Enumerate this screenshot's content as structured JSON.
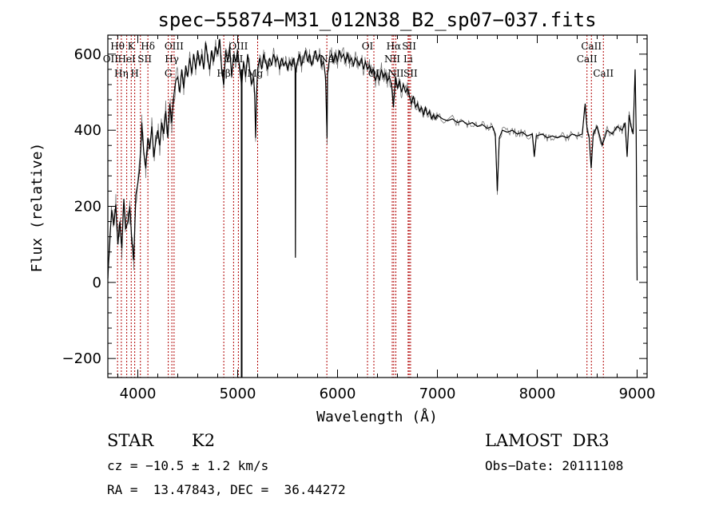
{
  "chart_data": {
    "type": "line",
    "title": "spec−55874−M31_012N38_B2_sp07−037.fits",
    "xlabel": "Wavelength (Å)",
    "ylabel": "Flux (relative)",
    "xlim": [
      3700,
      9100
    ],
    "ylim": [
      -250,
      650
    ],
    "x_ticks": [
      {
        "value": 4000,
        "label": "4000"
      },
      {
        "value": 5000,
        "label": "5000"
      },
      {
        "value": 6000,
        "label": "6000"
      },
      {
        "value": 7000,
        "label": "7000"
      },
      {
        "value": 8000,
        "label": "8000"
      },
      {
        "value": 9000,
        "label": "9000"
      }
    ],
    "y_ticks": [
      {
        "value": -200,
        "label": "−200"
      },
      {
        "value": 0,
        "label": "0"
      },
      {
        "value": 200,
        "label": "200"
      },
      {
        "value": 400,
        "label": "400"
      },
      {
        "value": 600,
        "label": "600"
      }
    ],
    "series": [
      {
        "points": [
          [
            3700,
            10
          ],
          [
            3720,
            120
          ],
          [
            3740,
            190
          ],
          [
            3760,
            150
          ],
          [
            3780,
            205
          ],
          [
            3800,
            100
          ],
          [
            3820,
            160
          ],
          [
            3840,
            90
          ],
          [
            3860,
            220
          ],
          [
            3880,
            140
          ],
          [
            3900,
            160
          ],
          [
            3920,
            200
          ],
          [
            3940,
            110
          ],
          [
            3960,
            60
          ],
          [
            3980,
            230
          ],
          [
            4000,
            260
          ],
          [
            4020,
            300
          ],
          [
            4040,
            420
          ],
          [
            4060,
            340
          ],
          [
            4080,
            300
          ],
          [
            4100,
            380
          ],
          [
            4120,
            350
          ],
          [
            4140,
            410
          ],
          [
            4160,
            330
          ],
          [
            4180,
            370
          ],
          [
            4200,
            400
          ],
          [
            4220,
            360
          ],
          [
            4240,
            420
          ],
          [
            4260,
            390
          ],
          [
            4280,
            450
          ],
          [
            4300,
            380
          ],
          [
            4320,
            470
          ],
          [
            4340,
            420
          ],
          [
            4360,
            490
          ],
          [
            4380,
            530
          ],
          [
            4400,
            540
          ],
          [
            4420,
            500
          ],
          [
            4440,
            560
          ],
          [
            4460,
            510
          ],
          [
            4480,
            570
          ],
          [
            4500,
            540
          ],
          [
            4520,
            590
          ],
          [
            4540,
            550
          ],
          [
            4560,
            600
          ],
          [
            4580,
            560
          ],
          [
            4600,
            610
          ],
          [
            4620,
            570
          ],
          [
            4640,
            600
          ],
          [
            4660,
            560
          ],
          [
            4680,
            630
          ],
          [
            4700,
            590
          ],
          [
            4720,
            560
          ],
          [
            4740,
            610
          ],
          [
            4760,
            580
          ],
          [
            4780,
            620
          ],
          [
            4800,
            600
          ],
          [
            4820,
            640
          ],
          [
            4840,
            560
          ],
          [
            4860,
            520
          ],
          [
            4880,
            610
          ],
          [
            4900,
            580
          ],
          [
            4920,
            620
          ],
          [
            4940,
            540
          ],
          [
            4960,
            600
          ],
          [
            4980,
            580
          ],
          [
            5000,
            610
          ],
          [
            5020,
            560
          ],
          [
            5040,
            520
          ],
          [
            5060,
            580
          ],
          [
            5080,
            540
          ],
          [
            5100,
            600
          ],
          [
            5120,
            560
          ],
          [
            5140,
            520
          ],
          [
            5160,
            540
          ],
          [
            5170,
            490
          ],
          [
            5180,
            380
          ],
          [
            5190,
            500
          ],
          [
            5200,
            560
          ],
          [
            5220,
            590
          ],
          [
            5240,
            560
          ],
          [
            5260,
            600
          ],
          [
            5280,
            580
          ],
          [
            5300,
            560
          ],
          [
            5320,
            590
          ],
          [
            5340,
            570
          ],
          [
            5360,
            600
          ],
          [
            5380,
            580
          ],
          [
            5400,
            590
          ],
          [
            5420,
            560
          ],
          [
            5440,
            590
          ],
          [
            5460,
            570
          ],
          [
            5480,
            580
          ],
          [
            5500,
            560
          ],
          [
            5520,
            580
          ],
          [
            5540,
            570
          ],
          [
            5560,
            590
          ],
          [
            5575,
            560
          ],
          [
            5578,
            65
          ],
          [
            5582,
            560
          ],
          [
            5600,
            580
          ],
          [
            5620,
            600
          ],
          [
            5640,
            570
          ],
          [
            5660,
            590
          ],
          [
            5680,
            610
          ],
          [
            5700,
            580
          ],
          [
            5720,
            600
          ],
          [
            5740,
            570
          ],
          [
            5760,
            590
          ],
          [
            5780,
            610
          ],
          [
            5800,
            580
          ],
          [
            5820,
            600
          ],
          [
            5840,
            570
          ],
          [
            5860,
            580
          ],
          [
            5880,
            540
          ],
          [
            5895,
            380
          ],
          [
            5900,
            550
          ],
          [
            5920,
            590
          ],
          [
            5940,
            600
          ],
          [
            5960,
            580
          ],
          [
            5980,
            600
          ],
          [
            6000,
            580
          ],
          [
            6020,
            610
          ],
          [
            6040,
            590
          ],
          [
            6060,
            600
          ],
          [
            6080,
            580
          ],
          [
            6100,
            600
          ],
          [
            6120,
            580
          ],
          [
            6140,
            590
          ],
          [
            6160,
            570
          ],
          [
            6180,
            590
          ],
          [
            6200,
            580
          ],
          [
            6220,
            570
          ],
          [
            6240,
            590
          ],
          [
            6260,
            560
          ],
          [
            6280,
            580
          ],
          [
            6300,
            560
          ],
          [
            6320,
            570
          ],
          [
            6340,
            550
          ],
          [
            6360,
            560
          ],
          [
            6380,
            530
          ],
          [
            6400,
            550
          ],
          [
            6420,
            530
          ],
          [
            6440,
            560
          ],
          [
            6460,
            540
          ],
          [
            6480,
            550
          ],
          [
            6500,
            530
          ],
          [
            6520,
            540
          ],
          [
            6540,
            520
          ],
          [
            6560,
            460
          ],
          [
            6580,
            540
          ],
          [
            6600,
            510
          ],
          [
            6620,
            530
          ],
          [
            6640,
            500
          ],
          [
            6660,
            520
          ],
          [
            6680,
            500
          ],
          [
            6700,
            510
          ],
          [
            6720,
            490
          ],
          [
            6740,
            470
          ],
          [
            6760,
            490
          ],
          [
            6780,
            460
          ],
          [
            6800,
            470
          ],
          [
            6820,
            450
          ],
          [
            6840,
            460
          ],
          [
            6860,
            440
          ],
          [
            6880,
            460
          ],
          [
            6900,
            440
          ],
          [
            6920,
            450
          ],
          [
            6940,
            430
          ],
          [
            6960,
            440
          ],
          [
            6980,
            430
          ],
          [
            7000,
            440
          ],
          [
            7050,
            430
          ],
          [
            7100,
            425
          ],
          [
            7150,
            430
          ],
          [
            7200,
            420
          ],
          [
            7250,
            425
          ],
          [
            7300,
            415
          ],
          [
            7350,
            420
          ],
          [
            7400,
            410
          ],
          [
            7450,
            415
          ],
          [
            7500,
            405
          ],
          [
            7550,
            410
          ],
          [
            7580,
            390
          ],
          [
            7600,
            240
          ],
          [
            7620,
            380
          ],
          [
            7650,
            400
          ],
          [
            7700,
            395
          ],
          [
            7750,
            400
          ],
          [
            7800,
            390
          ],
          [
            7850,
            395
          ],
          [
            7900,
            385
          ],
          [
            7950,
            390
          ],
          [
            7970,
            330
          ],
          [
            7990,
            385
          ],
          [
            8050,
            390
          ],
          [
            8100,
            380
          ],
          [
            8150,
            385
          ],
          [
            8200,
            380
          ],
          [
            8250,
            385
          ],
          [
            8300,
            380
          ],
          [
            8350,
            390
          ],
          [
            8400,
            385
          ],
          [
            8450,
            390
          ],
          [
            8480,
            470
          ],
          [
            8500,
            400
          ],
          [
            8520,
            380
          ],
          [
            8540,
            300
          ],
          [
            8560,
            390
          ],
          [
            8580,
            400
          ],
          [
            8600,
            410
          ],
          [
            8650,
            360
          ],
          [
            8700,
            400
          ],
          [
            8750,
            390
          ],
          [
            8800,
            410
          ],
          [
            8850,
            400
          ],
          [
            8880,
            420
          ],
          [
            8900,
            330
          ],
          [
            8920,
            440
          ],
          [
            8940,
            410
          ],
          [
            8960,
            390
          ],
          [
            8980,
            560
          ],
          [
            8990,
            400
          ],
          [
            9000,
            5
          ]
        ]
      }
    ],
    "reference_lines": [
      {
        "x": 3797
      },
      {
        "x": 3835
      },
      {
        "x": 3889
      },
      {
        "x": 3934
      },
      {
        "x": 3969
      },
      {
        "x": 4026
      },
      {
        "x": 4101
      },
      {
        "x": 4305
      },
      {
        "x": 4341
      },
      {
        "x": 4363
      },
      {
        "x": 4861
      },
      {
        "x": 4959
      },
      {
        "x": 5007
      },
      {
        "x": 5200
      },
      {
        "x": 5893
      },
      {
        "x": 6300
      },
      {
        "x": 6364
      },
      {
        "x": 6548
      },
      {
        "x": 6563
      },
      {
        "x": 6584
      },
      {
        "x": 6707
      },
      {
        "x": 6717
      },
      {
        "x": 6731
      },
      {
        "x": 8498
      },
      {
        "x": 8542
      },
      {
        "x": 8662
      }
    ],
    "line_labels": [
      {
        "text": "Hθ",
        "x": 3797,
        "row": 1
      },
      {
        "text": "K",
        "x": 3934,
        "row": 1
      },
      {
        "text": "Hδ",
        "x": 4101,
        "row": 1
      },
      {
        "text": "OII",
        "x": 3727,
        "row": 2
      },
      {
        "text": "Hη",
        "x": 3835,
        "row": 3
      },
      {
        "text": "HeI",
        "x": 3889,
        "row": 2
      },
      {
        "text": "H",
        "x": 3969,
        "row": 3
      },
      {
        "text": "SII",
        "x": 4069,
        "row": 2
      },
      {
        "text": "OIII",
        "x": 4363,
        "row": 1
      },
      {
        "text": "Hγ",
        "x": 4341,
        "row": 2
      },
      {
        "text": "G",
        "x": 4305,
        "row": 3
      },
      {
        "text": "OIII",
        "x": 5007,
        "row": 1
      },
      {
        "text": "OIII",
        "x": 4959,
        "row": 2
      },
      {
        "text": "Hβ",
        "x": 4861,
        "row": 3
      },
      {
        "text": "Mg",
        "x": 5175,
        "row": 3
      },
      {
        "text": "Na",
        "x": 5893,
        "row": 2
      },
      {
        "text": "OI",
        "x": 6300,
        "row": 1
      },
      {
        "text": "OI",
        "x": 6364,
        "row": 3
      },
      {
        "text": "Hα",
        "x": 6563,
        "row": 1
      },
      {
        "text": "NII",
        "x": 6548,
        "row": 2
      },
      {
        "text": "NII",
        "x": 6584,
        "row": 3
      },
      {
        "text": "SII",
        "x": 6717,
        "row": 1
      },
      {
        "text": "Li",
        "x": 6707,
        "row": 2
      },
      {
        "text": "SII",
        "x": 6731,
        "row": 3
      },
      {
        "text": "CaII",
        "x": 8542,
        "row": 1
      },
      {
        "text": "CaII",
        "x": 8498,
        "row": 2
      },
      {
        "text": "CaII",
        "x": 8662,
        "row": 3
      }
    ],
    "colors": {
      "spectrum": "#000000",
      "reference_line": "#b00000",
      "axes": "#000000"
    }
  },
  "info": {
    "object_class": "STAR",
    "subclass": "K2",
    "survey": "LAMOST  DR3",
    "cz": "cz = −10.5 ± 1.2 km/s",
    "obs_date": "Obs−Date: 20111108",
    "coords": "RA =  13.47843, DEC =  36.44272"
  }
}
